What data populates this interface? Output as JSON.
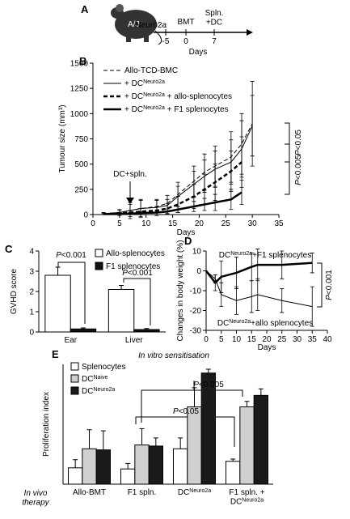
{
  "timeline": {
    "panel": "A",
    "mouse_label": "A/J",
    "start_label": "Neuro2a",
    "xlabel": "Days",
    "xlim": [
      -8,
      15
    ],
    "ticks": [
      -5,
      0,
      7
    ],
    "events": [
      {
        "day": 0,
        "label": [
          {
            "text": "BMT"
          }
        ]
      },
      {
        "day": 7,
        "label": [
          {
            "text": "Spln."
          },
          {
            "text": "+DC",
            "br": true
          }
        ]
      }
    ]
  },
  "chart_data": [
    {
      "type": "line",
      "panel": "B",
      "xlabel": "Days",
      "ylabel": "Tumour size (mm³)",
      "xlim": [
        0,
        35
      ],
      "xticks": [
        0,
        5,
        10,
        15,
        20,
        25,
        30,
        35
      ],
      "ylim": [
        0,
        1500
      ],
      "yticks": [
        0,
        250,
        500,
        750,
        1000,
        1250,
        1500
      ],
      "x": [
        2,
        5,
        7,
        9,
        12,
        14,
        16,
        19,
        21,
        23,
        26,
        28,
        30
      ],
      "series": [
        {
          "name": [
            {
              "text": "Allo-TCD-BMC"
            }
          ],
          "color": "#000000",
          "width": 1,
          "dash": true,
          "values": [
            10,
            20,
            40,
            60,
            80,
            110,
            200,
            330,
            420,
            480,
            570,
            700,
            900
          ],
          "errors": [
            10,
            20,
            60,
            80,
            60,
            80,
            120,
            150,
            180,
            200,
            250,
            300,
            420
          ]
        },
        {
          "name": [
            {
              "text": "+ DC"
            },
            {
              "text": "Neuro2a",
              "sup": true
            }
          ],
          "color": "#000000",
          "width": 1,
          "dash": false,
          "values": [
            10,
            20,
            40,
            60,
            70,
            90,
            180,
            300,
            380,
            450,
            520,
            650,
            880
          ],
          "errors": [
            10,
            30,
            80,
            90,
            80,
            60,
            100,
            130,
            160,
            180,
            220,
            280,
            300
          ]
        },
        {
          "name": [
            {
              "text": "+ DC"
            },
            {
              "text": "Neuro2a",
              "sup": true
            },
            {
              "text": " + allo-splenocytes"
            }
          ],
          "color": "#000000",
          "width": 2.5,
          "dash": true,
          "values": [
            5,
            10,
            20,
            30,
            40,
            60,
            100,
            180,
            250,
            320,
            430,
            520,
            null
          ],
          "errors": [
            5,
            10,
            20,
            30,
            40,
            50,
            80,
            120,
            150,
            180,
            200,
            250,
            null
          ]
        },
        {
          "name": [
            {
              "text": "+ DC"
            },
            {
              "text": "Neuro2a",
              "sup": true
            },
            {
              "text": " + F1 splenocytes"
            }
          ],
          "color": "#000000",
          "width": 2.5,
          "dash": false,
          "values": [
            5,
            5,
            10,
            15,
            20,
            30,
            50,
            80,
            100,
            120,
            150,
            220,
            null
          ],
          "errors": [
            5,
            5,
            10,
            15,
            20,
            25,
            30,
            50,
            60,
            80,
            100,
            120,
            null
          ]
        }
      ],
      "notes": [
        [
          {
            "text": "DC+spln."
          }
        ],
        [
          {
            "text": "P",
            "italic": true
          },
          {
            "text": "<0.05"
          }
        ],
        [
          {
            "text": "P",
            "italic": true
          },
          {
            "text": "<0.005"
          }
        ]
      ]
    },
    {
      "type": "bar",
      "panel": "C",
      "ylabel": "GVHD score",
      "ylim": [
        0,
        4
      ],
      "yticks": [
        0,
        1,
        2,
        3,
        4
      ],
      "categories": [
        "Ear",
        "Liver"
      ],
      "series": [
        {
          "name": [
            {
              "text": "Allo-splenocytes"
            }
          ],
          "color": "#ffffff",
          "values": [
            2.8,
            2.1
          ],
          "errors": [
            0.4,
            0.2
          ]
        },
        {
          "name": [
            {
              "text": "F1 splenocytes"
            }
          ],
          "color": "#111111",
          "values": [
            0.15,
            0.12
          ],
          "errors": [
            0.05,
            0.05
          ]
        }
      ],
      "notes": [
        [
          {
            "text": "P",
            "italic": true
          },
          {
            "text": "<0.001"
          }
        ],
        [
          {
            "text": "P",
            "italic": true
          },
          {
            "text": "<0.001"
          }
        ]
      ]
    },
    {
      "type": "line",
      "panel": "D",
      "xlabel": "Days",
      "ylabel": "Changes in body weight (%)",
      "xlim": [
        0,
        40
      ],
      "xticks": [
        0,
        5,
        10,
        15,
        20,
        25,
        30,
        35,
        40
      ],
      "ylim": [
        -30,
        10
      ],
      "yticks": [
        -30,
        -20,
        -10,
        0,
        10
      ],
      "x": [
        0,
        3,
        5,
        10,
        15,
        17,
        25,
        35
      ],
      "series": [
        {
          "name": [
            {
              "text": "DC"
            },
            {
              "text": "Neuro2a",
              "sup": true
            },
            {
              "text": "+F1 splenocytes"
            }
          ],
          "color": "#000000",
          "width": 2.5,
          "dash": false,
          "values": [
            0,
            -6,
            -3,
            -1,
            2,
            3,
            3,
            4
          ],
          "errors": [
            0,
            4,
            8,
            8,
            7,
            8,
            7,
            5
          ]
        },
        {
          "name": [
            {
              "text": "DC"
            },
            {
              "text": "Neuro2a",
              "sup": true
            },
            {
              "text": "+allo splenocytes"
            }
          ],
          "color": "#000000",
          "width": 1,
          "dash": false,
          "values": [
            0,
            -4,
            -12,
            -15,
            -13,
            -12,
            -15,
            -18
          ],
          "errors": [
            0,
            2,
            6,
            7,
            8,
            8,
            6,
            10
          ]
        }
      ],
      "notes": [
        [
          {
            "text": "P",
            "italic": true
          },
          {
            "text": "<0.001"
          }
        ]
      ]
    },
    {
      "type": "bar",
      "panel": "E",
      "ylabel": "Proliferation index",
      "ylim": [
        0,
        22
      ],
      "categories": [
        [
          {
            "text": "Allo-BMT"
          }
        ],
        [
          {
            "text": "F1 spln."
          }
        ],
        [
          {
            "text": "DC"
          },
          {
            "text": "Neuro2a",
            "sup": true
          }
        ],
        [
          {
            "text": "F1 spln. +"
          },
          {
            "text": "DC",
            "br": true
          },
          {
            "text": "Neuro2a",
            "sup": true
          }
        ]
      ],
      "series": [
        {
          "name": [
            {
              "text": "Splenocytes"
            }
          ],
          "color": "#ffffff",
          "values": [
            3,
            2.8,
            6.5,
            4.2
          ],
          "errors": [
            1.5,
            1,
            2,
            0.4
          ]
        },
        {
          "name": [
            {
              "text": "DC"
            },
            {
              "text": "Naive",
              "sup": true
            }
          ],
          "color": "#d0d0d0",
          "values": [
            6.5,
            7.2,
            14.2,
            14.2
          ],
          "errors": [
            3.5,
            3,
            3.5,
            1
          ]
        },
        {
          "name": [
            {
              "text": "DC"
            },
            {
              "text": "Neuro2a",
              "sup": true
            }
          ],
          "color": "#1a1a1a",
          "values": [
            6.3,
            7,
            20.4,
            16.3
          ],
          "errors": [
            3.5,
            1.5,
            0.7,
            1.2
          ]
        }
      ],
      "notes": [
        [
          {
            "text": "In vitro",
            "italic": true
          },
          {
            "text": " sensitisation",
            "italic": true
          }
        ],
        [
          {
            "text": "P",
            "italic": true
          },
          {
            "text": "<0.005"
          }
        ],
        [
          {
            "text": "P",
            "italic": true
          },
          {
            "text": "<0.05"
          }
        ],
        [
          {
            "text": "In vivo",
            "italic": true
          },
          {
            "text": "therapy",
            "italic": true,
            "br": true
          }
        ]
      ]
    }
  ]
}
